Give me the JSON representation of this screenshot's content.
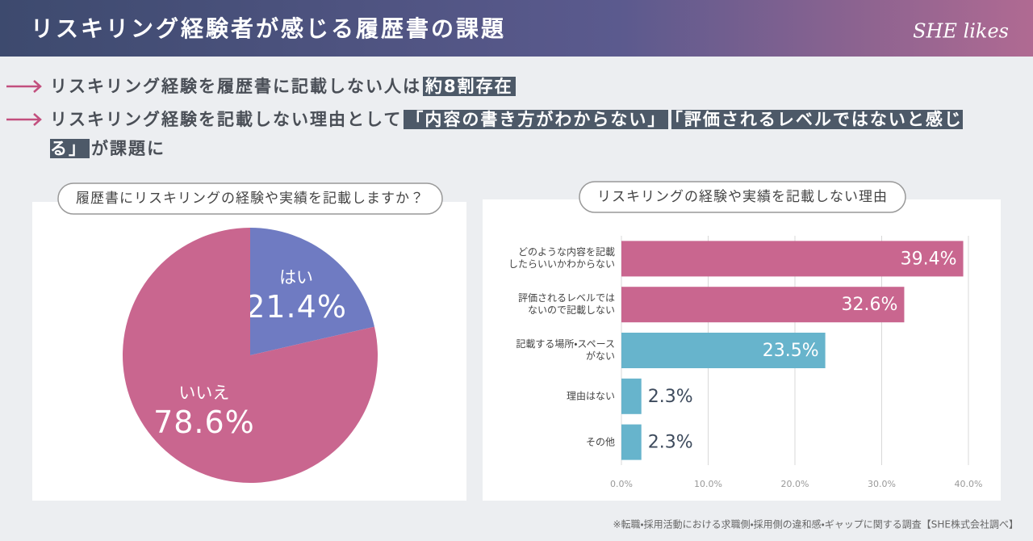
{
  "header": {
    "title": "リスキリング経験者が感じる履歴書の課題",
    "logo": "SHE likes"
  },
  "bullets": [
    [
      {
        "text": "リスキリング経験を履歴書に記載しない人は",
        "highlight": false
      },
      {
        "text": "約8割存在",
        "highlight": true
      }
    ],
    [
      {
        "text": "リスキリング経験を記載しない理由として",
        "highlight": false
      },
      {
        "text": "「内容の書き方がわからない」",
        "highlight": true
      },
      {
        "text": "「評価されるレベルではないと感じる」",
        "highlight": true
      },
      {
        "text": "が課題に",
        "highlight": false
      }
    ]
  ],
  "footnote": "※転職・採用活動における求職側・採用側の違和感・ギャップに関する調査【SHE株式会社調べ】",
  "chart_data": [
    {
      "type": "pie",
      "title": "履歴書にリスキリングの経験や実績を記載しますか？",
      "categories": [
        "はい",
        "いいえ"
      ],
      "values": [
        21.4,
        78.6
      ],
      "value_labels": [
        "21.4%",
        "78.6%"
      ],
      "colors": [
        "#6f7bc2",
        "#c9668f"
      ]
    },
    {
      "type": "bar",
      "orientation": "horizontal",
      "title": "リスキリングの経験や実績を記載しない理由",
      "categories": [
        "どのような内容を記載\nしたらいいかわからない",
        "評価されるレベルでは\nないので記載しない",
        "記載する場所・スペース\nがない",
        "理由はない",
        "その他"
      ],
      "values": [
        39.4,
        32.6,
        23.5,
        2.3,
        2.3
      ],
      "value_labels": [
        "39.4%",
        "32.6%",
        "23.5%",
        "2.3%",
        "2.3%"
      ],
      "colors": [
        "#c9668f",
        "#c9668f",
        "#67b4cc",
        "#67b4cc",
        "#67b4cc"
      ],
      "xlim": [
        0,
        40
      ],
      "xticks": [
        {
          "value": 0,
          "label": "0.0%"
        },
        {
          "value": 10,
          "label": "10.0%"
        },
        {
          "value": 20,
          "label": "20.0%"
        },
        {
          "value": 30,
          "label": "30.0%"
        },
        {
          "value": 40,
          "label": "40.0%"
        }
      ],
      "grid": true
    }
  ]
}
